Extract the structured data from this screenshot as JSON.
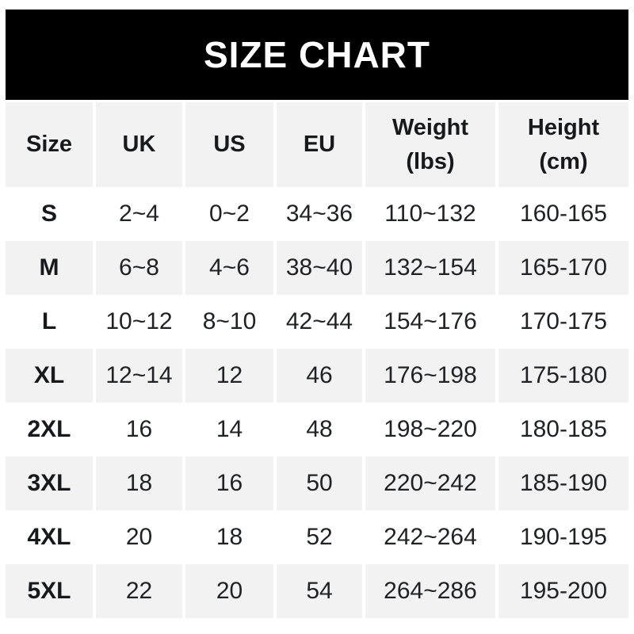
{
  "title": "SIZE CHART",
  "colors": {
    "banner_bg": "#000000",
    "banner_text": "#ffffff",
    "cell_alt_bg": "#f2f2f3",
    "text": "#202226"
  },
  "header": {
    "columns": [
      {
        "label": "Size"
      },
      {
        "label": "UK"
      },
      {
        "label": "US"
      },
      {
        "label": "EU"
      },
      {
        "label": "Weight",
        "sublabel": "(lbs)"
      },
      {
        "label": "Height",
        "sublabel": "(cm)"
      }
    ]
  },
  "chart_data": {
    "type": "table",
    "title": "SIZE CHART",
    "columns": [
      "Size",
      "UK",
      "US",
      "EU",
      "Weight (lbs)",
      "Height (cm)"
    ],
    "rows": [
      [
        "S",
        "2~4",
        "0~2",
        "34~36",
        "110~132",
        "160-165"
      ],
      [
        "M",
        "6~8",
        "4~6",
        "38~40",
        "132~154",
        "165-170"
      ],
      [
        "L",
        "10~12",
        "8~10",
        "42~44",
        "154~176",
        "170-175"
      ],
      [
        "XL",
        "12~14",
        "12",
        "46",
        "176~198",
        "175-180"
      ],
      [
        "2XL",
        "16",
        "14",
        "48",
        "198~220",
        "180-185"
      ],
      [
        "3XL",
        "18",
        "16",
        "50",
        "220~242",
        "185-190"
      ],
      [
        "4XL",
        "20",
        "18",
        "52",
        "242~264",
        "190-195"
      ],
      [
        "5XL",
        "22",
        "20",
        "54",
        "264~286",
        "195-200"
      ]
    ]
  }
}
